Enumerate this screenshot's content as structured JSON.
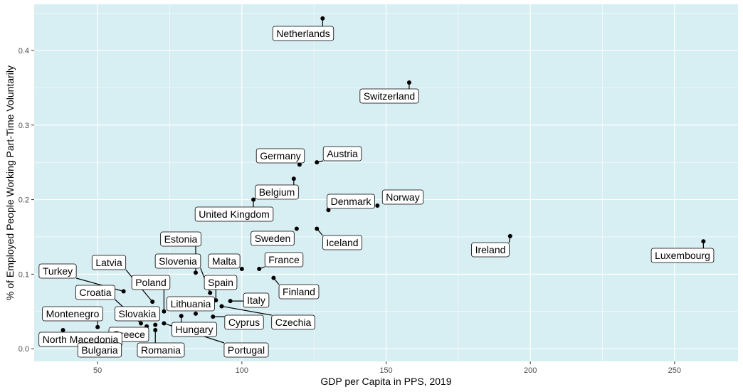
{
  "colors": {
    "panel_background": "#d7eef3",
    "grid": "#ffffff",
    "point": "#000000",
    "label_background": "#ffffff",
    "label_border": "#000000"
  },
  "chart_data": {
    "type": "scatter",
    "xlabel": "GDP per Capita in PPS, 2019",
    "ylabel": "% of Employed People Working Part-Time Voluntarily",
    "xlim": [
      28,
      272
    ],
    "ylim": [
      -0.017,
      0.462
    ],
    "x_ticks": [
      50,
      100,
      150,
      200,
      250
    ],
    "y_ticks": [
      0.0,
      0.1,
      0.2,
      0.3,
      0.4
    ],
    "x_tick_labels": [
      "50",
      "100",
      "150",
      "200",
      "250"
    ],
    "y_tick_labels": [
      "0.0",
      "0.1",
      "0.2",
      "0.3",
      "0.4"
    ],
    "grid": true,
    "points": [
      {
        "label": "Netherlands",
        "x": 128,
        "y": 0.443
      },
      {
        "label": "Switzerland",
        "x": 158,
        "y": 0.357
      },
      {
        "label": "Austria",
        "x": 126,
        "y": 0.25
      },
      {
        "label": "Germany",
        "x": 120,
        "y": 0.247
      },
      {
        "label": "Belgium",
        "x": 118,
        "y": 0.228
      },
      {
        "label": "Norway",
        "x": 147,
        "y": 0.192
      },
      {
        "label": "Denmark",
        "x": 130,
        "y": 0.186
      },
      {
        "label": "United Kingdom",
        "x": 104,
        "y": 0.2
      },
      {
        "label": "Ireland",
        "x": 193,
        "y": 0.151
      },
      {
        "label": "Luxembourg",
        "x": 260,
        "y": 0.144
      },
      {
        "label": "Sweden",
        "x": 119,
        "y": 0.161
      },
      {
        "label": "Iceland",
        "x": 126,
        "y": 0.161
      },
      {
        "label": "France",
        "x": 106,
        "y": 0.107
      },
      {
        "label": "Malta",
        "x": 100,
        "y": 0.107
      },
      {
        "label": "Finland",
        "x": 111,
        "y": 0.095
      },
      {
        "label": "Estonia",
        "x": 84,
        "y": 0.102
      },
      {
        "label": "Slovenia",
        "x": 89,
        "y": 0.075
      },
      {
        "label": "Spain",
        "x": 91,
        "y": 0.065
      },
      {
        "label": "Italy",
        "x": 96,
        "y": 0.064
      },
      {
        "label": "Czechia",
        "x": 93,
        "y": 0.057
      },
      {
        "label": "Cyprus",
        "x": 90,
        "y": 0.043
      },
      {
        "label": "Lithuania",
        "x": 84,
        "y": 0.047
      },
      {
        "label": "Hungary",
        "x": 79,
        "y": 0.044
      },
      {
        "label": "Portugal",
        "x": 73,
        "y": 0.034
      },
      {
        "label": "Poland",
        "x": 73,
        "y": 0.05
      },
      {
        "label": "Latvia",
        "x": 69,
        "y": 0.063
      },
      {
        "label": "Turkey",
        "x": 59,
        "y": 0.077
      },
      {
        "label": "Croatia",
        "x": 65,
        "y": 0.034
      },
      {
        "label": "Slovakia",
        "x": 70,
        "y": 0.032
      },
      {
        "label": "Greece",
        "x": 67,
        "y": 0.03
      },
      {
        "label": "Romania",
        "x": 70,
        "y": 0.025
      },
      {
        "label": "Montenegro",
        "x": 50,
        "y": 0.029
      },
      {
        "label": "North Macedonia",
        "x": 38,
        "y": 0.025
      },
      {
        "label": "Bulgaria",
        "x": 52,
        "y": 0.015
      }
    ]
  }
}
